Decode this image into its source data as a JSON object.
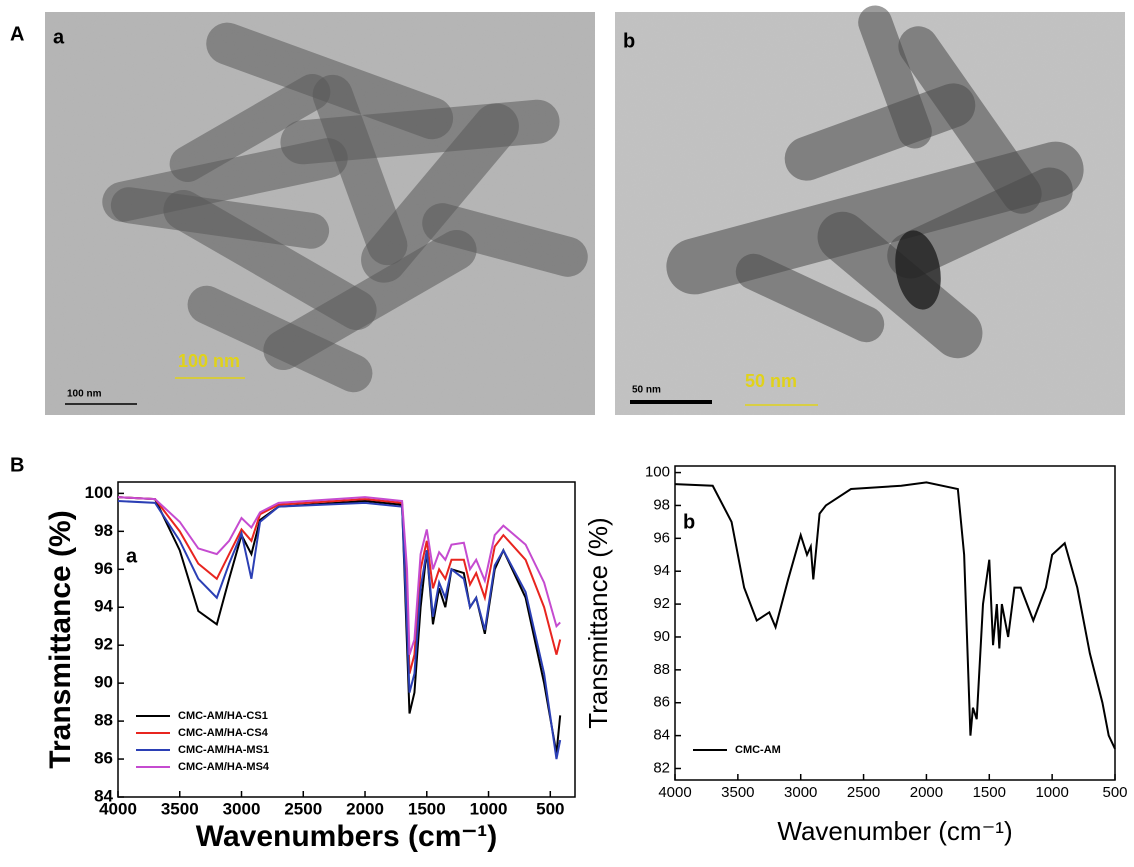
{
  "figure": {
    "labels": [
      "A",
      "B"
    ],
    "tem": [
      {
        "panel": "a",
        "scale_bar": "100 nm",
        "overlay": "100 nm"
      },
      {
        "panel": "b",
        "scale_bar": "50 nm",
        "overlay": "50 nm"
      }
    ]
  },
  "chart_data": [
    {
      "type": "line",
      "panel_label": "a",
      "xlabel": "Wavenumbers (cm⁻¹)",
      "ylabel": "Transmittance (%)",
      "xlim": [
        4000,
        300
      ],
      "xticks": [
        4000,
        3500,
        3000,
        2500,
        2000,
        1500,
        1000,
        500
      ],
      "ylim": [
        84,
        100.6
      ],
      "yticks": [
        84,
        86,
        88,
        90,
        92,
        94,
        96,
        98,
        100
      ],
      "legend": "lower left",
      "x": [
        4000,
        3700,
        3500,
        3350,
        3200,
        3100,
        3000,
        2920,
        2850,
        2700,
        2000,
        1700,
        1660,
        1640,
        1600,
        1550,
        1500,
        1450,
        1400,
        1350,
        1300,
        1200,
        1150,
        1100,
        1030,
        950,
        880,
        700,
        550,
        450,
        420
      ],
      "series": [
        {
          "name": "CMC-AM/HA-CS1",
          "color": "#000000",
          "values": [
            99.8,
            99.7,
            97,
            93.8,
            93.1,
            95.5,
            97.8,
            96.8,
            98.6,
            99.3,
            99.6,
            99.4,
            92,
            88.4,
            89.5,
            94,
            97,
            93.1,
            95,
            94,
            96,
            95.8,
            94,
            94.5,
            92.6,
            96,
            97,
            94.5,
            90,
            86.3,
            88.3
          ]
        },
        {
          "name": "CMC-AM/HA-CS4",
          "color": "#e8251f",
          "values": [
            99.8,
            99.7,
            98,
            96.3,
            95.5,
            96.8,
            98.1,
            97.5,
            98.9,
            99.4,
            99.7,
            99.5,
            95,
            90.5,
            91.5,
            96,
            97.5,
            95,
            96,
            95.5,
            96.5,
            96.5,
            95.2,
            95.8,
            94.5,
            97.2,
            97.8,
            96.5,
            94,
            91.5,
            92.3
          ]
        },
        {
          "name": "CMC-AM/HA-MS1",
          "color": "#2b3fb5",
          "values": [
            99.6,
            99.5,
            97.5,
            95.5,
            94.5,
            96.3,
            97.9,
            95.5,
            98.5,
            99.3,
            99.5,
            99.3,
            93,
            89.5,
            90.5,
            95,
            97,
            93.5,
            95.3,
            94.5,
            96,
            95.5,
            94,
            94.5,
            92.8,
            96.2,
            97,
            94.8,
            90.5,
            86,
            87
          ]
        },
        {
          "name": "CMC-AM/HA-MS4",
          "color": "#c54bd0",
          "values": [
            99.8,
            99.7,
            98.5,
            97.1,
            96.8,
            97.5,
            98.7,
            98.2,
            99,
            99.5,
            99.8,
            99.6,
            96,
            91.5,
            92.3,
            96.8,
            98.1,
            96,
            96.9,
            96.5,
            97.3,
            97.4,
            96,
            96.5,
            95.4,
            97.8,
            98.3,
            97.3,
            95.3,
            93,
            93.2
          ]
        }
      ]
    },
    {
      "type": "line",
      "panel_label": "b",
      "xlabel": "Wavenumber (cm⁻¹)",
      "ylabel": "Transmittance (%)",
      "xlim": [
        4000,
        500
      ],
      "xticks": [
        4000,
        3500,
        3000,
        2500,
        2000,
        1500,
        1000,
        500
      ],
      "ylim": [
        81.3,
        100.4
      ],
      "yticks": [
        82,
        84,
        86,
        88,
        90,
        92,
        94,
        96,
        98,
        100
      ],
      "legend": "lower left",
      "x": [
        4000,
        3700,
        3550,
        3450,
        3350,
        3250,
        3200,
        3100,
        3000,
        2950,
        2920,
        2900,
        2850,
        2800,
        2600,
        2200,
        2000,
        1750,
        1700,
        1650,
        1630,
        1600,
        1550,
        1500,
        1470,
        1440,
        1420,
        1400,
        1350,
        1300,
        1250,
        1200,
        1150,
        1100,
        1050,
        1000,
        900,
        800,
        700,
        600,
        550,
        500
      ],
      "series": [
        {
          "name": "CMC-AM",
          "color": "#000000",
          "values": [
            99.3,
            99.2,
            97,
            93,
            91,
            91.5,
            90.6,
            93.5,
            96.2,
            95,
            95.5,
            93.5,
            97.5,
            98,
            99,
            99.2,
            99.4,
            99,
            95,
            84,
            85.7,
            85,
            92,
            94.7,
            89.5,
            92,
            89.3,
            92,
            90,
            93,
            93,
            92,
            91,
            92,
            93,
            95,
            95.7,
            93,
            89,
            86,
            84,
            83.2
          ]
        }
      ]
    }
  ]
}
